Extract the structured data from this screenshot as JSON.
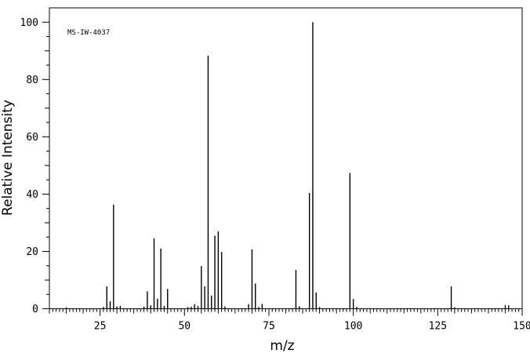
{
  "chart_data": {
    "type": "bar",
    "subtype": "mass-spectrum-stick",
    "annotation": "MS-IW-4037",
    "xlabel": "m/z",
    "ylabel": "Relative Intensity",
    "xlim": [
      10,
      150
    ],
    "ylim": [
      0,
      105
    ],
    "grid": false,
    "x_ticks": [
      25,
      50,
      75,
      100,
      125,
      150
    ],
    "y_ticks": [
      0,
      20,
      40,
      60,
      80,
      100
    ],
    "color": "#000000",
    "peaks": [
      {
        "x": 15,
        "y": 0.5
      },
      {
        "x": 26,
        "y": 0.6
      },
      {
        "x": 27,
        "y": 7.8
      },
      {
        "x": 28,
        "y": 2.6
      },
      {
        "x": 29,
        "y": 36.3
      },
      {
        "x": 30,
        "y": 0.8
      },
      {
        "x": 31,
        "y": 1.0
      },
      {
        "x": 38,
        "y": 0.7
      },
      {
        "x": 39,
        "y": 6.1
      },
      {
        "x": 40,
        "y": 1.2
      },
      {
        "x": 41,
        "y": 24.6
      },
      {
        "x": 42,
        "y": 3.5
      },
      {
        "x": 43,
        "y": 21.0
      },
      {
        "x": 44,
        "y": 1.0
      },
      {
        "x": 45,
        "y": 6.9
      },
      {
        "x": 51,
        "y": 0.6
      },
      {
        "x": 52,
        "y": 0.7
      },
      {
        "x": 53,
        "y": 1.6
      },
      {
        "x": 54,
        "y": 1.0
      },
      {
        "x": 55,
        "y": 14.9
      },
      {
        "x": 56,
        "y": 7.8
      },
      {
        "x": 57,
        "y": 88.3
      },
      {
        "x": 58,
        "y": 4.6
      },
      {
        "x": 59,
        "y": 25.5
      },
      {
        "x": 60,
        "y": 27.0
      },
      {
        "x": 61,
        "y": 19.8
      },
      {
        "x": 62,
        "y": 0.8
      },
      {
        "x": 69,
        "y": 1.6
      },
      {
        "x": 70,
        "y": 20.7
      },
      {
        "x": 71,
        "y": 8.8
      },
      {
        "x": 72,
        "y": 0.6
      },
      {
        "x": 73,
        "y": 1.7
      },
      {
        "x": 83,
        "y": 13.6
      },
      {
        "x": 84,
        "y": 0.9
      },
      {
        "x": 87,
        "y": 40.4
      },
      {
        "x": 88,
        "y": 100.0
      },
      {
        "x": 89,
        "y": 5.7
      },
      {
        "x": 90,
        "y": 0.6
      },
      {
        "x": 99,
        "y": 47.4
      },
      {
        "x": 100,
        "y": 3.4
      },
      {
        "x": 101,
        "y": 0.6
      },
      {
        "x": 129,
        "y": 7.8
      },
      {
        "x": 130,
        "y": 0.5
      },
      {
        "x": 145,
        "y": 1.3
      },
      {
        "x": 146,
        "y": 1.2
      }
    ]
  }
}
